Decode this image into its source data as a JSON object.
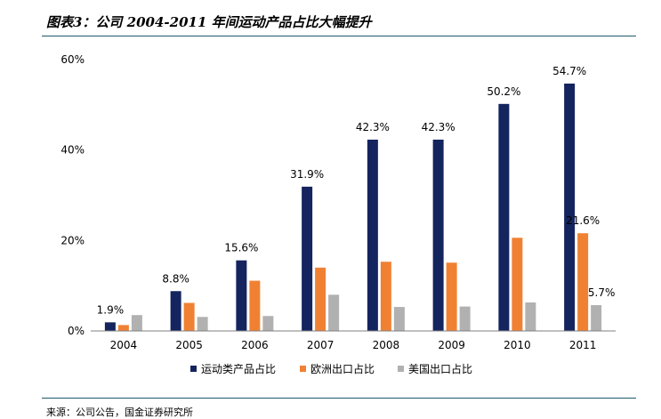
{
  "header": {
    "title": "图表3：公司 2004-2011 年间运动产品占比大幅提升"
  },
  "footer": {
    "source": "来源：公司公告，国金证券研究所"
  },
  "colors": {
    "series1": "#14245e",
    "series2": "#f08133",
    "series3": "#b1b1b1",
    "rule": "#1f5a6b"
  },
  "chart_data": {
    "type": "bar",
    "title": "",
    "xlabel": "",
    "ylabel": "",
    "categories": [
      "2004",
      "2005",
      "2006",
      "2007",
      "2008",
      "2009",
      "2010",
      "2011"
    ],
    "ylim": [
      0,
      60
    ],
    "yticks": [
      0,
      20,
      40,
      60
    ],
    "ytick_labels": [
      "0%",
      "20%",
      "40%",
      "60%"
    ],
    "grid": false,
    "legend_position": "bottom",
    "series": [
      {
        "name": "运动类产品占比",
        "values": [
          1.9,
          8.8,
          15.6,
          31.9,
          42.3,
          42.3,
          50.2,
          54.7
        ],
        "labels": [
          "1.9%",
          "8.8%",
          "15.6%",
          "31.9%",
          "42.3%",
          "42.3%",
          "50.2%",
          "54.7%"
        ]
      },
      {
        "name": "欧洲出口占比",
        "values": [
          1.3,
          6.2,
          11.1,
          14.0,
          15.3,
          15.1,
          20.6,
          21.6
        ],
        "labels": [
          "",
          "",
          "",
          "",
          "",
          "",
          "",
          "21.6%"
        ]
      },
      {
        "name": "美国出口占比",
        "values": [
          3.5,
          3.1,
          3.3,
          8.0,
          5.3,
          5.4,
          6.3,
          5.7
        ],
        "labels": [
          "",
          "",
          "",
          "",
          "",
          "",
          "",
          "5.7%"
        ]
      }
    ]
  }
}
